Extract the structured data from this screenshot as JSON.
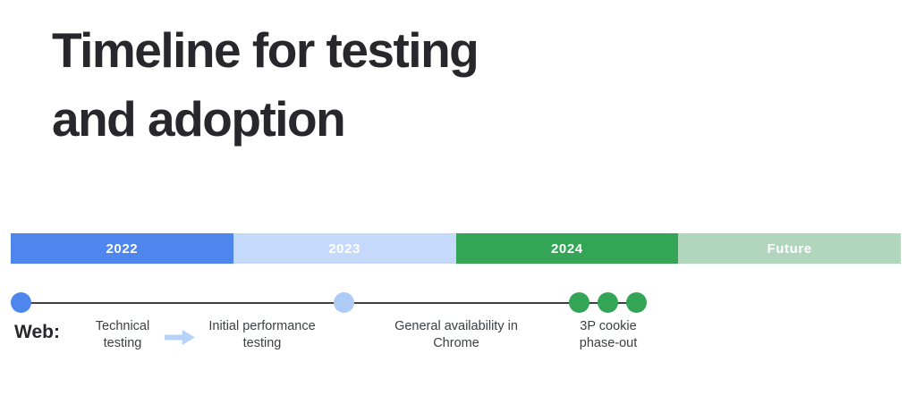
{
  "title": {
    "line1": "Timeline for testing",
    "line2": "and adoption"
  },
  "year_bar": {
    "segments": [
      {
        "label": "2022",
        "color": "#4e86ee"
      },
      {
        "label": "2023",
        "color": "#c5d9fa"
      },
      {
        "label": "2024",
        "color": "#34a456"
      },
      {
        "label": "Future",
        "color": "#b1d5bd"
      }
    ]
  },
  "timeline": {
    "row_label": "Web:",
    "dots": [
      {
        "name": "blue-dot",
        "color": "#4e86ee"
      },
      {
        "name": "light-blue-dot",
        "color": "#aecbf8"
      },
      {
        "name": "green-dot-1",
        "color": "#34a456"
      },
      {
        "name": "green-dot-2",
        "color": "#34a456"
      },
      {
        "name": "green-dot-3",
        "color": "#34a456"
      }
    ],
    "milestones": [
      {
        "label": "Technical testing"
      },
      {
        "label": "Initial performance testing"
      },
      {
        "label": "General availability in Chrome"
      },
      {
        "label": "3P cookie phase-out"
      }
    ],
    "arrow_icon": "arrow-right"
  },
  "colors": {
    "background": "#ffffff",
    "title_text": "#28282c",
    "label_text": "#3c4043",
    "bar_label_text": "#ffffff",
    "timeline_line": "#3f3f3f",
    "arrow_fill": "#b5d2f8"
  }
}
